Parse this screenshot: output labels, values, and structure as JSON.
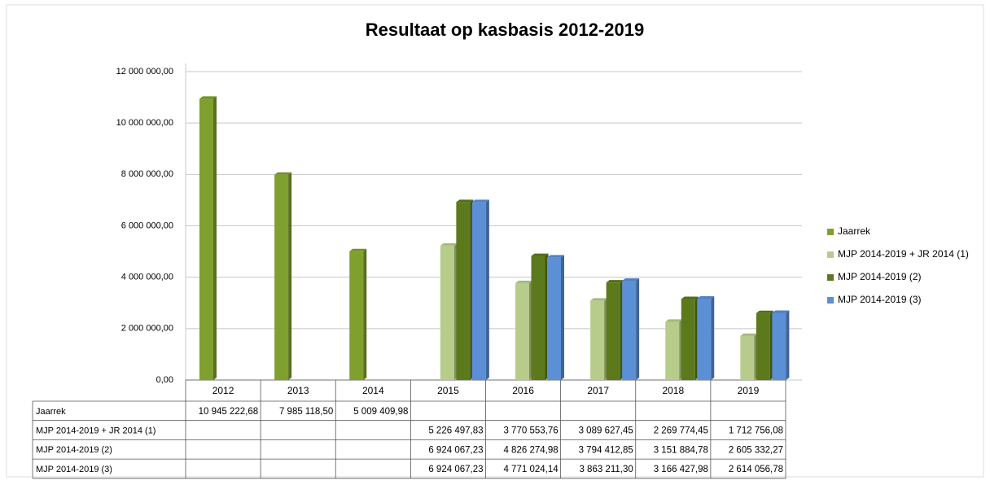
{
  "chart_data": {
    "type": "bar",
    "title": "Resultaat op kasbasis 2012-2019",
    "categories": [
      "2012",
      "2013",
      "2014",
      "2015",
      "2016",
      "2017",
      "2018",
      "2019"
    ],
    "series": [
      {
        "name": "Jaarrek",
        "color": "#7fa02e",
        "values": [
          10945222.68,
          7985118.5,
          5009409.98,
          null,
          null,
          null,
          null,
          null
        ],
        "value_labels": [
          "10 945 222,68",
          "7 985 118,50",
          "5 009 409,98",
          null,
          null,
          null,
          null,
          null
        ]
      },
      {
        "name": "MJP 2014-2019 + JR 2014 (1)",
        "color": "#b7cc8a",
        "values": [
          null,
          null,
          null,
          5226497.83,
          3770553.76,
          3089627.45,
          2269774.45,
          1712756.08
        ],
        "value_labels": [
          null,
          null,
          null,
          "5 226 497,83",
          "3 770 553,76",
          "3 089 627,45",
          "2 269 774,45",
          "1 712 756,08"
        ]
      },
      {
        "name": "MJP 2014-2019 (2)",
        "color": "#5c7a1c",
        "values": [
          null,
          null,
          null,
          6924067.23,
          4826274.98,
          3794412.85,
          3151884.78,
          2605332.27
        ],
        "value_labels": [
          null,
          null,
          null,
          "6 924 067,23",
          "4 826 274,98",
          "3 794 412,85",
          "3 151 884,78",
          "2 605 332,27"
        ]
      },
      {
        "name": "MJP 2014-2019 (3)",
        "color": "#5b8fd6",
        "values": [
          null,
          null,
          null,
          6924067.23,
          4771024.14,
          3863211.3,
          3166427.98,
          2614056.78
        ],
        "value_labels": [
          null,
          null,
          null,
          "6 924 067,23",
          "4 771 024,14",
          "3 863 211,30",
          "3 166 427,98",
          "2 614 056,78"
        ]
      }
    ],
    "ylim": [
      0,
      12000000
    ],
    "yticks": [
      {
        "value": 0,
        "label": "0,00"
      },
      {
        "value": 2000000,
        "label": "2 000 000,00"
      },
      {
        "value": 4000000,
        "label": "4 000 000,00"
      },
      {
        "value": 6000000,
        "label": "6 000 000,00"
      },
      {
        "value": 8000000,
        "label": "8 000 000,00"
      },
      {
        "value": 10000000,
        "label": "10 000 000,00"
      },
      {
        "value": 12000000,
        "label": "12 000 000,00"
      }
    ],
    "grid": true,
    "legend": "right"
  }
}
